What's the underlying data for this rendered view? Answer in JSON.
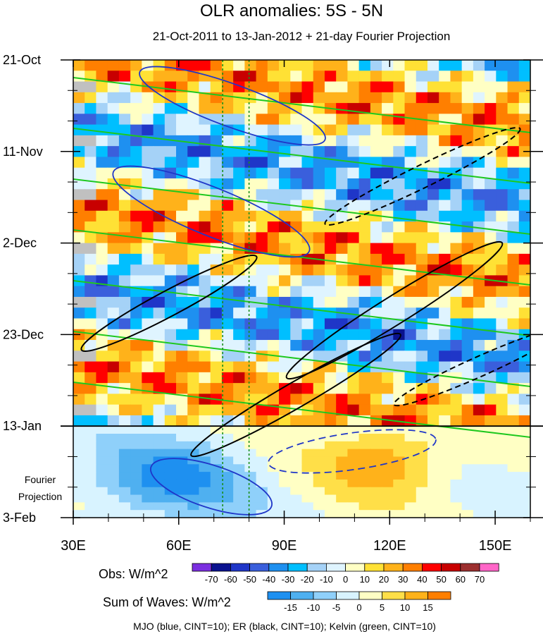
{
  "chart_data": {
    "type": "heatmap",
    "title": "OLR anomalies: 5S - 5N",
    "subtitle": "21-Oct-2011 to 13-Jan-2012 + 21-day Fourier Projection",
    "x_axis": {
      "range": [
        30,
        160
      ],
      "ticks": [
        30,
        60,
        90,
        120,
        150
      ],
      "tick_labels": [
        "30E",
        "60E",
        "90E",
        "120E",
        "150E"
      ]
    },
    "y_axis": {
      "tick_labels": [
        "21-Oct",
        "11-Nov",
        "2-Dec",
        "23-Dec",
        "13-Jan",
        "3-Feb"
      ],
      "day_offsets": [
        0,
        21,
        42,
        63,
        84,
        105
      ],
      "range_days": [
        0,
        105
      ],
      "projection_label": [
        "Fourier",
        "Projection"
      ],
      "divider_day": 84
    },
    "reference_longitudes": [
      72.5,
      80
    ],
    "obs_colorbar": {
      "label": "Obs: W/m^2",
      "levels": [
        "-70",
        "-60",
        "-50",
        "-40",
        "-30",
        "-20",
        "-10",
        "0",
        "10",
        "20",
        "30",
        "40",
        "50",
        "60",
        "70"
      ],
      "colors": [
        "#7b2fe0",
        "#0a128f",
        "#1f36c8",
        "#3a5fdc",
        "#1e90f0",
        "#00bfff",
        "#a5d2f7",
        "#dff4ff",
        "#ffffc4",
        "#ffe135",
        "#ffb21a",
        "#ff7f00",
        "#ff0000",
        "#c80000",
        "#9c2f2f",
        "#ff66c8"
      ]
    },
    "waves_colorbar": {
      "label": "Sum of Waves: W/m^2",
      "levels": [
        "-15",
        "-10",
        "-5",
        "0",
        "5",
        "10",
        "15"
      ],
      "colors": [
        "#1e90f0",
        "#4fb0f0",
        "#8fd0fa",
        "#d8f3ff",
        "#ffffc4",
        "#ffdf48",
        "#ffb21a",
        "#ff7f00"
      ]
    },
    "legend_note": "MJO (blue, CINT=10); ER (black, CINT=10); Kelvin (green, CINT=10)",
    "series_colors": {
      "mjo": "#1f36c8",
      "er": "#000000",
      "kelvin": "#1ec81e"
    },
    "missing_color": "#c0c0c0"
  }
}
